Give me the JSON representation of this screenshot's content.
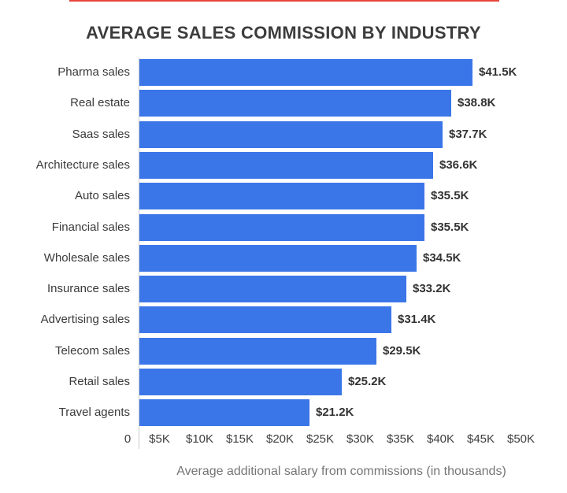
{
  "page": {
    "background": "#ffffff"
  },
  "decor": {
    "top_line_color": "#e8443a"
  },
  "chart_data": {
    "type": "bar",
    "orientation": "horizontal",
    "title": "AVERAGE SALES COMMISSION BY INDUSTRY",
    "xlabel": "Average additional salary from commissions (in thousands)",
    "categories": [
      "Pharma sales",
      "Real estate",
      "Saas sales",
      "Architecture sales",
      "Auto sales",
      "Financial sales",
      "Wholesale sales",
      "Insurance sales",
      "Advertising sales",
      "Telecom sales",
      "Retail sales",
      "Travel agents"
    ],
    "values": [
      41.5,
      38.8,
      37.7,
      36.6,
      35.5,
      35.5,
      34.5,
      33.2,
      31.4,
      29.5,
      25.2,
      21.2
    ],
    "value_labels": [
      "$41.5K",
      "$38.8K",
      "$37.7K",
      "$36.6K",
      "$35.5K",
      "$35.5K",
      "$34.5K",
      "$33.2K",
      "$31.4K",
      "$29.5K",
      "$25.2K",
      "$21.2K"
    ],
    "x_ticks": [
      "0",
      "$5K",
      "$10K",
      "$15K",
      "$20K",
      "$25K",
      "$30K",
      "$35K",
      "$40K",
      "$45K",
      "$50K"
    ],
    "xlim": [
      0,
      50
    ],
    "grid": false,
    "legend": "none",
    "bar_color": "#3b76e8",
    "colors": {
      "title": "#3c3c3c",
      "category_label": "#3a3a3a",
      "value_label": "#333333",
      "tick_label": "#3f3f3f",
      "axis_title": "#757575",
      "axis_line": "#cccccc"
    }
  }
}
